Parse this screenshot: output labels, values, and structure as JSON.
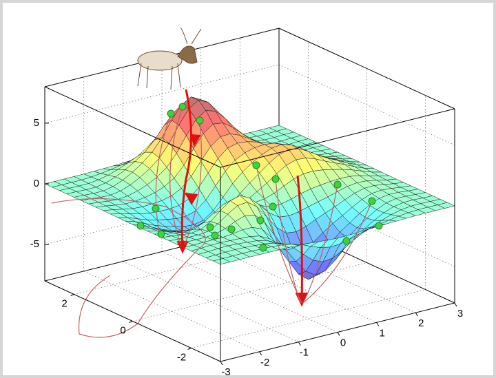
{
  "chart_data": {
    "type": "surface",
    "x": [
      -3,
      -2,
      -1,
      0,
      1,
      2,
      3
    ],
    "y": [
      -3,
      -2,
      -1,
      0,
      1,
      2,
      3
    ],
    "z": [
      [
        0,
        0,
        -0.03,
        -0.25,
        -0.11,
        -0.01,
        0
      ],
      [
        0,
        0.05,
        -0.6,
        -4.76,
        -2.1,
        -0.06,
        0
      ],
      [
        0,
        -0.13,
        1.85,
        -0.72,
        -0.27,
        0.5,
        0
      ],
      [
        -0.03,
        -1.33,
        -1.65,
        0.98,
        2.94,
        1.41,
        0.03
      ],
      [
        0,
        -0.48,
        0.23,
        3.69,
        2.44,
        0.58,
        0
      ],
      [
        0,
        0.08,
        2.1,
        5.86,
        2.21,
        0.13,
        0
      ],
      [
        0,
        0.01,
        0.11,
        0.3,
        0.11,
        0.01,
        0
      ]
    ],
    "xlim": [
      -3,
      3
    ],
    "ylim": [
      -3,
      3
    ],
    "zlim": [
      -8,
      8
    ],
    "xticks": [
      -3,
      -2,
      -1,
      0,
      1,
      2,
      3
    ],
    "yticks": [
      -2,
      0,
      2
    ],
    "zticks": [
      -5,
      0,
      5
    ],
    "colormap": "jet",
    "grid": true
  }
}
